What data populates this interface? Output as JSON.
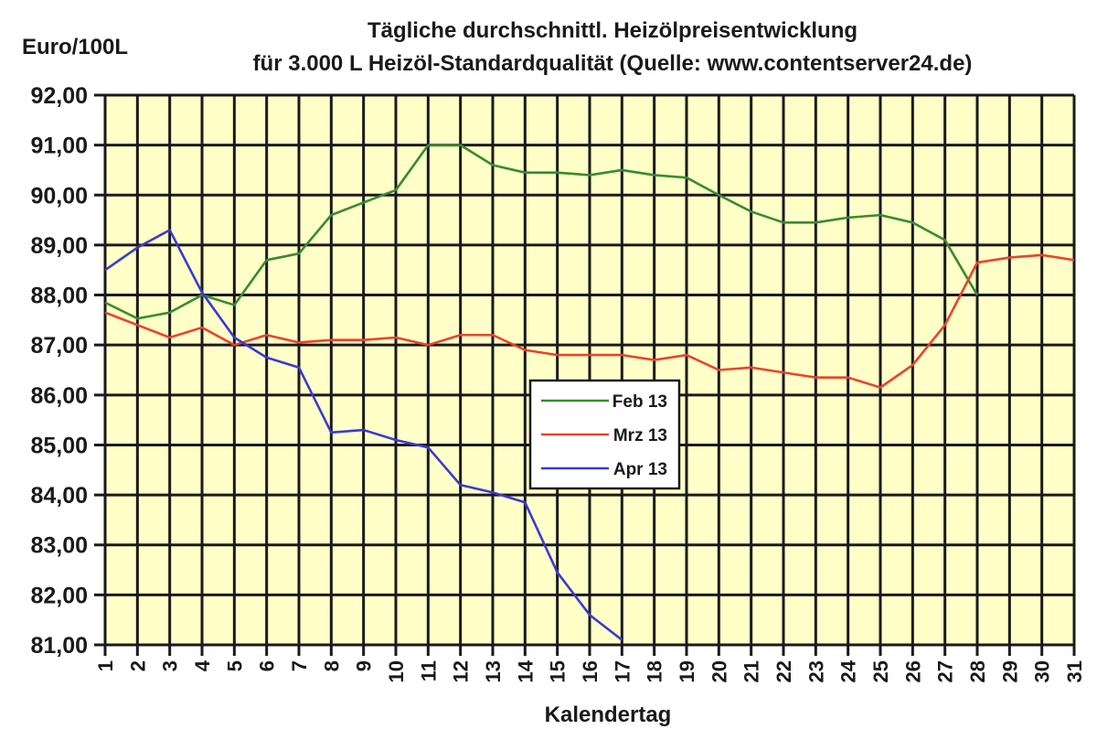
{
  "chart_data": {
    "type": "line",
    "title": "Tägliche durchschnittl. Heizölpreisentwicklung",
    "subtitle": "für 3.000 L Heizöl-Standardqualität (Quelle: www.contentserver24.de)",
    "xlabel": "Kalendertag",
    "ylabel": "Euro/100L",
    "ylim": [
      81,
      92
    ],
    "xlim": [
      1,
      31
    ],
    "grid": true,
    "legend_position": "center",
    "x": [
      1,
      2,
      3,
      4,
      5,
      6,
      7,
      8,
      9,
      10,
      11,
      12,
      13,
      14,
      15,
      16,
      17,
      18,
      19,
      20,
      21,
      22,
      23,
      24,
      25,
      26,
      27,
      28,
      29,
      30,
      31
    ],
    "x_tick_labels": [
      "1",
      "2",
      "3",
      "4",
      "5",
      "6",
      "7",
      "8",
      "9",
      "10",
      "11",
      "12",
      "13",
      "14",
      "15",
      "16",
      "17",
      "18",
      "19",
      "20",
      "21",
      "22",
      "23",
      "24",
      "25",
      "26",
      "27",
      "28",
      "29",
      "30",
      "31"
    ],
    "y_tick_labels": [
      "92,00",
      "91,00",
      "90,00",
      "89,00",
      "88,00",
      "87,00",
      "86,00",
      "85,00",
      "84,00",
      "83,00",
      "82,00",
      "81,00"
    ],
    "y_ticks": [
      92,
      91,
      90,
      89,
      88,
      87,
      86,
      85,
      84,
      83,
      82,
      81
    ],
    "series": [
      {
        "name": "Feb 13",
        "color": "#3a8a2e",
        "values": [
          87.85,
          87.53,
          87.65,
          88.0,
          87.8,
          88.7,
          88.83,
          89.6,
          89.85,
          90.1,
          91.0,
          91.0,
          90.6,
          90.45,
          90.45,
          90.4,
          90.5,
          90.4,
          90.35,
          90.0,
          89.67,
          89.45,
          89.45,
          89.55,
          89.6,
          89.45,
          89.1,
          88.0
        ]
      },
      {
        "name": "Mrz 13",
        "color": "#e8442c",
        "values": [
          87.65,
          87.4,
          87.15,
          87.35,
          87.0,
          87.2,
          87.05,
          87.1,
          87.1,
          87.15,
          87.0,
          87.2,
          87.2,
          86.9,
          86.8,
          86.8,
          86.8,
          86.7,
          86.8,
          86.5,
          86.55,
          86.45,
          86.35,
          86.35,
          86.15,
          86.6,
          87.4,
          88.65,
          88.75,
          88.8,
          88.7
        ]
      },
      {
        "name": "Apr 13",
        "color": "#3a3ad0",
        "values": [
          88.5,
          88.95,
          89.3,
          88.05,
          87.15,
          86.75,
          86.55,
          85.25,
          85.3,
          85.1,
          84.95,
          84.2,
          84.05,
          83.85,
          82.45,
          81.6,
          81.1
        ]
      }
    ]
  },
  "colors": {
    "plot_background": "#ffffc8",
    "grid": "#1a1a1a",
    "legend_background": "#ffffff"
  }
}
